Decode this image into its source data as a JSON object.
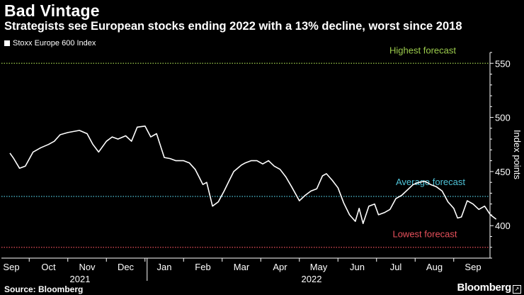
{
  "header": {
    "title": "Bad Vintage",
    "subtitle": "Strategists see European stocks ending 2022 with a 13% decline, worst since 2018"
  },
  "footer": {
    "source": "Source: Bloomberg",
    "brand": "Bloomberg",
    "brand_mark": "↗"
  },
  "chart_data": {
    "type": "line",
    "title": "Bad Vintage",
    "subtitle": "Strategists see European stocks ending 2022 with a 13% decline, worst since 2018",
    "ylabel": "Index points",
    "ylim": [
      370,
      560
    ],
    "yticks": [
      400,
      450,
      500,
      550
    ],
    "grid": false,
    "legend": "top-left",
    "x_tick_labels": [
      "Sep",
      "Oct",
      "Nov",
      "Dec",
      "Jan",
      "Feb",
      "Mar",
      "Apr",
      "May",
      "Jun",
      "Jul",
      "Aug",
      "Sep"
    ],
    "x_year_labels": [
      {
        "label": "2021",
        "month_index": 2
      },
      {
        "label": "2022",
        "month_index": 8
      }
    ],
    "reference_lines": [
      {
        "name": "Highest forecast",
        "value": 550,
        "color": "#9ccc4c"
      },
      {
        "name": "Average forecast",
        "value": 427,
        "color": "#4fc3d8"
      },
      {
        "name": "Lowest forecast",
        "value": 380,
        "color": "#e8505b"
      }
    ],
    "series": [
      {
        "name": "Stoxx Europe 600 Index",
        "color": "#ffffff",
        "x": [
          0.0,
          0.1,
          0.25,
          0.4,
          0.6,
          0.8,
          1.0,
          1.15,
          1.3,
          1.5,
          1.65,
          1.8,
          2.0,
          2.15,
          2.3,
          2.5,
          2.65,
          2.8,
          3.0,
          3.15,
          3.3,
          3.5,
          3.65,
          3.8,
          4.0,
          4.15,
          4.3,
          4.5,
          4.65,
          4.8,
          4.9,
          5.0,
          5.1,
          5.25,
          5.4,
          5.55,
          5.7,
          5.8,
          5.9,
          6.0,
          6.1,
          6.25,
          6.4,
          6.55,
          6.7,
          6.85,
          7.0,
          7.15,
          7.3,
          7.5,
          7.65,
          7.8,
          7.95,
          8.1,
          8.2,
          8.35,
          8.5,
          8.65,
          8.8,
          8.95,
          9.05,
          9.15,
          9.3,
          9.45,
          9.55,
          9.7,
          9.85,
          10.0,
          10.15,
          10.3,
          10.45,
          10.6,
          10.75,
          10.9,
          11.05,
          11.2,
          11.35,
          11.5,
          11.6,
          11.7,
          11.85,
          12.0,
          12.15,
          12.3,
          12.45,
          12.6
        ],
        "values": [
          467,
          462,
          453,
          455,
          468,
          472,
          475,
          478,
          484,
          486,
          487,
          488,
          485,
          475,
          468,
          478,
          482,
          480,
          483,
          478,
          491,
          492,
          482,
          485,
          463,
          462,
          460,
          460,
          458,
          452,
          445,
          438,
          440,
          418,
          422,
          432,
          443,
          450,
          453,
          456,
          458,
          460,
          460,
          457,
          460,
          455,
          452,
          445,
          436,
          423,
          428,
          432,
          434,
          446,
          448,
          442,
          435,
          421,
          410,
          404,
          416,
          402,
          418,
          420,
          410,
          412,
          415,
          425,
          428,
          433,
          438,
          440,
          441,
          438,
          436,
          432,
          422,
          416,
          407,
          408,
          423,
          420,
          415,
          418,
          410,
          406
        ]
      }
    ]
  }
}
